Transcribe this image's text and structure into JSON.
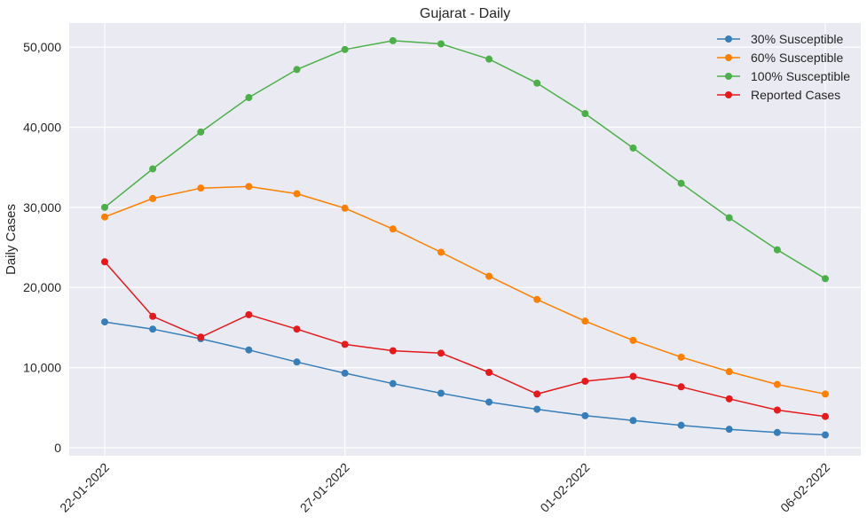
{
  "chart_data": {
    "type": "line",
    "title": "Gujarat - Daily",
    "xlabel": "",
    "ylabel": "Daily Cases",
    "x": [
      "22-01-2022",
      "23-01-2022",
      "24-01-2022",
      "25-01-2022",
      "26-01-2022",
      "27-01-2022",
      "28-01-2022",
      "29-01-2022",
      "30-01-2022",
      "31-01-2022",
      "01-02-2022",
      "02-02-2022",
      "03-02-2022",
      "04-02-2022",
      "05-02-2022",
      "06-02-2022"
    ],
    "x_tick_labels": [
      "22-01-2022",
      "27-01-2022",
      "01-02-2022",
      "06-02-2022"
    ],
    "ylim": [
      -1000,
      53000
    ],
    "y_ticks": [
      0,
      10000,
      20000,
      30000,
      40000,
      50000
    ],
    "y_tick_labels": [
      "0",
      "10,000",
      "20,000",
      "30,000",
      "40,000",
      "50,000"
    ],
    "grid": true,
    "legend_position": "top-right",
    "series": [
      {
        "name": "30% Susceptible",
        "color": "#377eb8",
        "values": [
          15700,
          14800,
          13600,
          12200,
          10700,
          9300,
          8000,
          6800,
          5700,
          4800,
          4000,
          3400,
          2800,
          2300,
          1900,
          1600
        ]
      },
      {
        "name": "60% Susceptible",
        "color": "#ff7f00",
        "values": [
          28800,
          31100,
          32400,
          32600,
          31700,
          29900,
          27300,
          24400,
          21400,
          18500,
          15800,
          13400,
          11300,
          9500,
          7900,
          6700
        ]
      },
      {
        "name": "100% Susceptible",
        "color": "#4daf4a",
        "values": [
          30000,
          34800,
          39400,
          43700,
          47200,
          49700,
          50800,
          50400,
          48500,
          45500,
          41700,
          37400,
          33000,
          28700,
          24700,
          21100
        ]
      },
      {
        "name": "Reported Cases",
        "color": "#e41a1c",
        "values": [
          23200,
          16400,
          13800,
          16600,
          14800,
          12900,
          12100,
          11800,
          9400,
          6700,
          8300,
          8900,
          7600,
          6100,
          4700,
          3900
        ]
      }
    ]
  }
}
